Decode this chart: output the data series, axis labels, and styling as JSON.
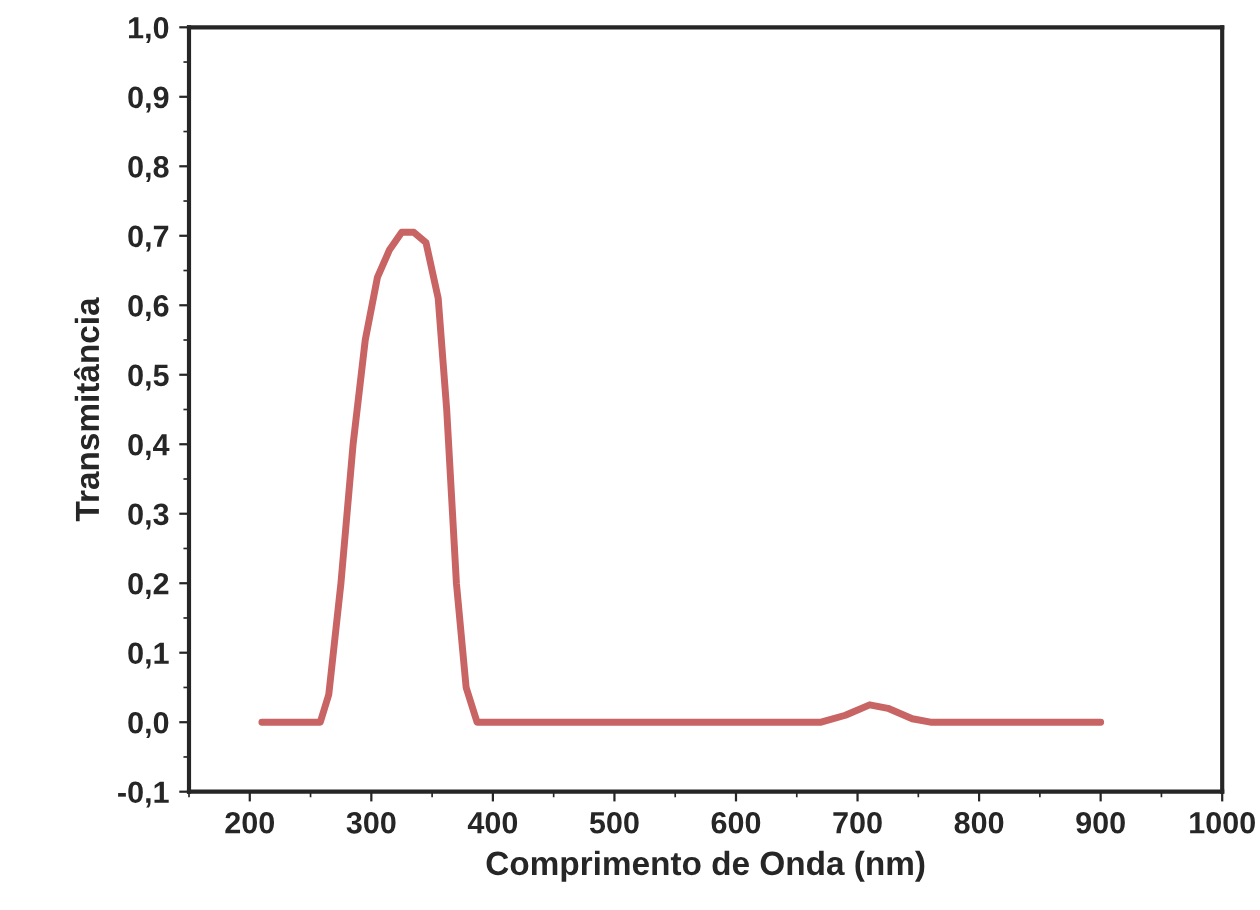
{
  "chart_data": {
    "type": "line",
    "xlabel": "Comprimento de Onda (nm)",
    "ylabel": "Transmitância",
    "xlim": [
      150,
      1000
    ],
    "xticks": [
      200,
      300,
      400,
      500,
      600,
      700,
      800,
      900,
      1000
    ],
    "ylim": [
      -0.1,
      1.0
    ],
    "yticks": [
      {
        "value": -0.1,
        "label": "-0,1"
      },
      {
        "value": 0.0,
        "label": "0,0"
      },
      {
        "value": 0.1,
        "label": "0,1"
      },
      {
        "value": 0.2,
        "label": "0,2"
      },
      {
        "value": 0.3,
        "label": "0,3"
      },
      {
        "value": 0.4,
        "label": "0,4"
      },
      {
        "value": 0.5,
        "label": "0,5"
      },
      {
        "value": 0.6,
        "label": "0,6"
      },
      {
        "value": 0.7,
        "label": "0,7"
      },
      {
        "value": 0.8,
        "label": "0,8"
      },
      {
        "value": 0.9,
        "label": "0,9"
      },
      {
        "value": 1.0,
        "label": "1,0"
      }
    ],
    "grid": false,
    "marker": "none",
    "line_style": "solid",
    "x": [
      210,
      258,
      265,
      275,
      285,
      295,
      305,
      315,
      325,
      335,
      345,
      355,
      362,
      370,
      378,
      387,
      670,
      690,
      710,
      725,
      745,
      760,
      900
    ],
    "series": [
      {
        "color": "#c86464",
        "values": [
          0,
          0,
          0.04,
          0.2,
          0.4,
          0.55,
          0.64,
          0.68,
          0.705,
          0.705,
          0.69,
          0.61,
          0.45,
          0.2,
          0.05,
          0,
          0,
          0.01,
          0.025,
          0.02,
          0.005,
          0,
          0
        ]
      }
    ]
  }
}
